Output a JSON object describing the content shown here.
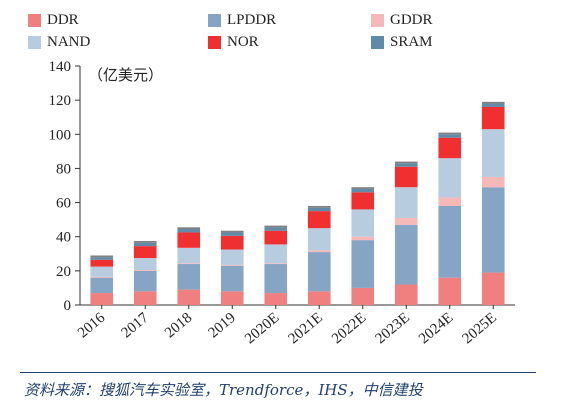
{
  "chart_data": {
    "type": "bar",
    "stacked": true,
    "categories": [
      "2016",
      "2017",
      "2018",
      "2019",
      "2020E",
      "2021E",
      "2022E",
      "2023E",
      "2024E",
      "2025E"
    ],
    "series": [
      {
        "name": "DDR",
        "color": "#f08080",
        "values": [
          7,
          8,
          9,
          8,
          7,
          8,
          10,
          12,
          16,
          19
        ]
      },
      {
        "name": "LPDDR",
        "color": "#86a5c4",
        "values": [
          9,
          12,
          15,
          15,
          17,
          23,
          28,
          35,
          42,
          50
        ]
      },
      {
        "name": "GDDR",
        "color": "#f7b8b8",
        "values": [
          0.5,
          0.5,
          0.5,
          0.5,
          0.5,
          1,
          2,
          4,
          5,
          6
        ]
      },
      {
        "name": "NAND",
        "color": "#b8cce0",
        "values": [
          6,
          7,
          9,
          9,
          11,
          13,
          16,
          18,
          23,
          28
        ]
      },
      {
        "name": "NOR",
        "color": "#f03030",
        "values": [
          4,
          7,
          9,
          8,
          8,
          10,
          10,
          12,
          12,
          13
        ]
      },
      {
        "name": "SRAM",
        "color": "#5f8aa8",
        "values": [
          1.5,
          2,
          2,
          2,
          2,
          2,
          2,
          2,
          2,
          2
        ]
      }
    ],
    "extra_segment": {
      "name": "",
      "color": "#7f7f7f",
      "values": [
        1,
        1,
        1,
        1,
        1,
        1,
        1,
        1,
        1,
        1
      ]
    },
    "ylim": [
      0,
      140
    ],
    "yticks": [
      0,
      20,
      40,
      60,
      80,
      100,
      120,
      140
    ],
    "unit_label": "（亿美元）",
    "legend_position": "top",
    "grid": false
  },
  "source_text": "资料来源：搜狐汽车实验室，Trendforce，IHS，中信建投"
}
